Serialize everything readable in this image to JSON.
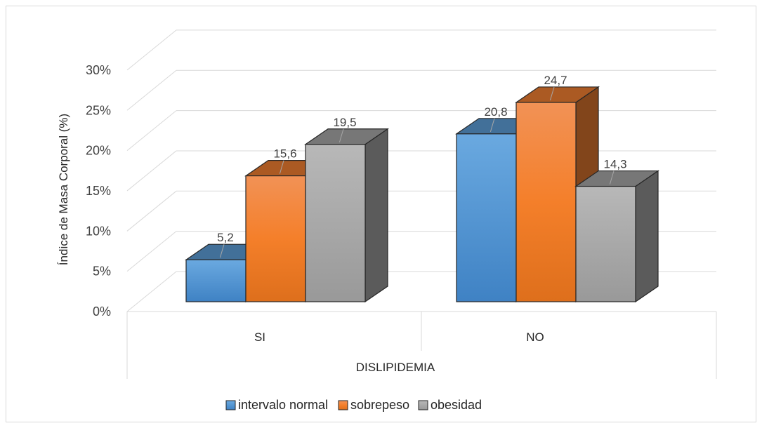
{
  "chart_data": {
    "type": "bar",
    "title": "",
    "xlabel": "DISLIPIDEMIA",
    "ylabel": "Índice de Masa Corporal (%)",
    "categories": [
      "SI",
      "NO"
    ],
    "ylim": [
      0,
      30
    ],
    "yticks": [
      0,
      5,
      10,
      15,
      20,
      25,
      30
    ],
    "ytick_labels": [
      "0%",
      "5%",
      "10%",
      "15%",
      "20%",
      "25%",
      "30%"
    ],
    "series": [
      {
        "name": "intervalo normal",
        "values": [
          5.2,
          20.8
        ],
        "labels": [
          "5,2",
          "20,8"
        ],
        "color": "#5b9bd5"
      },
      {
        "name": "sobrepeso",
        "values": [
          15.6,
          24.7
        ],
        "labels": [
          "15,6",
          "24,7"
        ],
        "color": "#ed7d31"
      },
      {
        "name": "obesidad",
        "values": [
          19.5,
          14.3
        ],
        "labels": [
          "19,5",
          "14,3"
        ],
        "color": "#a5a5a5"
      }
    ],
    "style": "3d-clustered-column",
    "grid": true,
    "legend_position": "bottom"
  }
}
